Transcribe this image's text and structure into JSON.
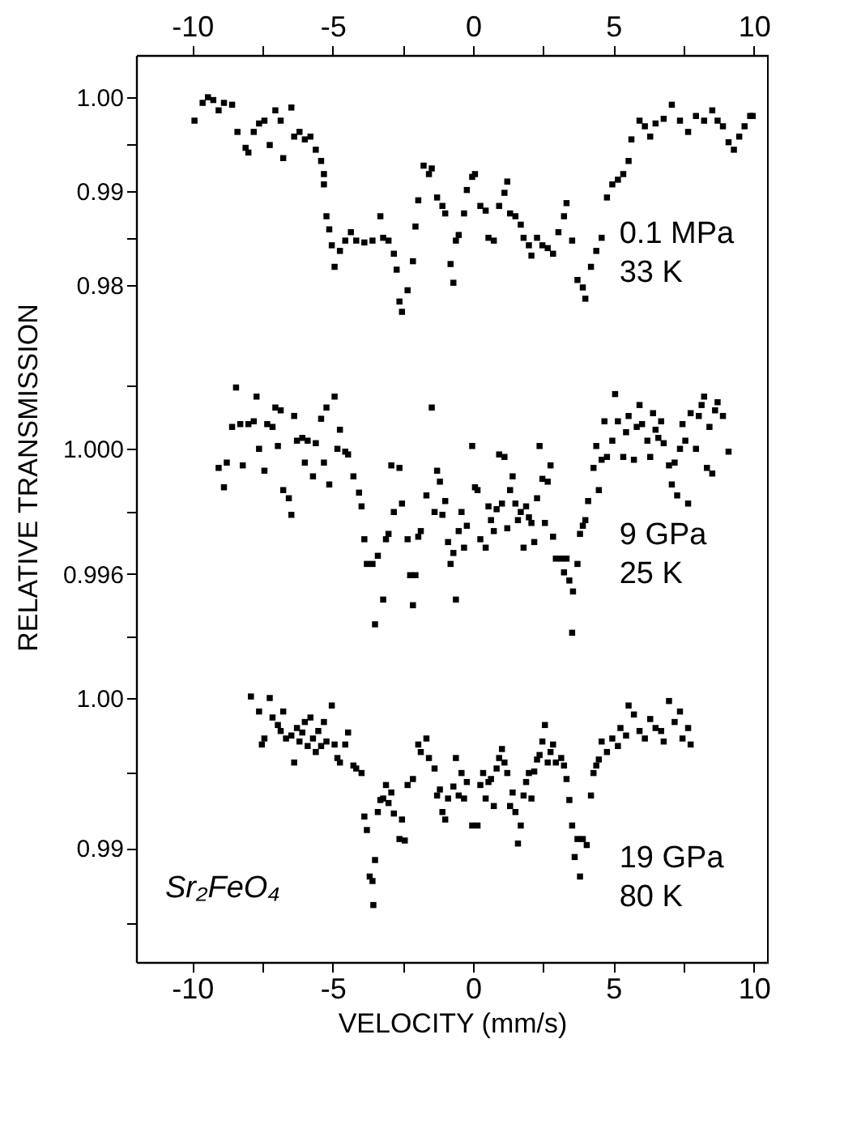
{
  "chart_data": [
    {
      "type": "scatter",
      "marker": "square",
      "color": "#000000",
      "xlim": [
        -12,
        10.5
      ],
      "xticks": [
        -10,
        {
          "value": -7.5,
          "label": null
        },
        -5,
        {
          "value": -2.5,
          "label": null
        },
        0,
        {
          "value": 2.5,
          "label": null
        },
        5,
        {
          "value": 7.5,
          "label": null
        },
        10
      ],
      "ylim": [
        0.9765,
        1.0045
      ],
      "yticks": [
        {
          "value": 1,
          "label": "1.00"
        },
        {
          "value": 0.995,
          "label": null
        },
        0.99,
        {
          "value": 0.985,
          "label": null
        },
        0.98
      ],
      "annotations": [
        "0.1 MPa",
        "33 K"
      ],
      "x": [
        -9.92,
        -9.63,
        -9.44,
        -9.25,
        -9.06,
        -8.87,
        -8.58,
        -8.39,
        -8.1,
        -8.0,
        -7.81,
        -7.62,
        -7.43,
        -7.24,
        -7.04,
        -6.85,
        -6.76,
        -6.47,
        -6.37,
        -6.18,
        -5.99,
        -5.79,
        -5.6,
        -5.41,
        -5.31,
        -5.31,
        -5.22,
        -5.12,
        -5.03,
        -4.93,
        -4.74,
        -4.55,
        -4.35,
        -4.16,
        -3.87,
        -3.58,
        -3.3,
        -3.2,
        -3.01,
        -2.82,
        -2.72,
        -2.62,
        -2.53,
        -2.33,
        -2.14,
        -2.05,
        -1.95,
        -1.76,
        -1.57,
        -1.47,
        -1.28,
        -1.09,
        -0.99,
        -0.8,
        -0.7,
        -0.61,
        -0.51,
        -0.32,
        -0.22,
        -0.03,
        0.07,
        0.26,
        0.45,
        0.55,
        0.74,
        0.93,
        1.12,
        1.22,
        1.32,
        1.51,
        1.7,
        1.8,
        1.99,
        2.08,
        2.28,
        2.47,
        2.66,
        2.85,
        3.04,
        3.24,
        3.33,
        3.53,
        3.72,
        3.91,
        4.0,
        4.2,
        4.39,
        4.58,
        4.77,
        4.96,
        5.16,
        5.35,
        5.54,
        5.64,
        5.93,
        6.12,
        6.31,
        6.5,
        6.79,
        7.08,
        7.37,
        7.66,
        7.94,
        8.23,
        8.52,
        8.71,
        8.9,
        9.1,
        9.29,
        9.48,
        9.67,
        9.87,
        9.96
      ],
      "values": [
        0.9975,
        0.9994,
        1.0,
        0.9997,
        0.9986,
        0.9994,
        0.9992,
        0.9963,
        0.9946,
        0.9941,
        0.9963,
        0.9972,
        0.9975,
        0.9949,
        0.9986,
        0.9975,
        0.9935,
        0.9989,
        0.9958,
        0.9963,
        0.9955,
        0.9958,
        0.9944,
        0.9932,
        0.9918,
        0.9907,
        0.9873,
        0.9859,
        0.9842,
        0.9819,
        0.9836,
        0.9847,
        0.9856,
        0.9847,
        0.9845,
        0.9847,
        0.9873,
        0.985,
        0.9847,
        0.9833,
        0.9816,
        0.9782,
        0.9771,
        0.9794,
        0.9825,
        0.9862,
        0.989,
        0.9927,
        0.9918,
        0.9924,
        0.9893,
        0.9884,
        0.9876,
        0.9822,
        0.9802,
        0.9847,
        0.9853,
        0.9876,
        0.9901,
        0.9915,
        0.9918,
        0.9884,
        0.9879,
        0.985,
        0.9847,
        0.9884,
        0.9898,
        0.991,
        0.9876,
        0.9873,
        0.9864,
        0.985,
        0.9842,
        0.9831,
        0.985,
        0.9842,
        0.9839,
        0.9833,
        0.9856,
        0.9873,
        0.9887,
        0.9847,
        0.9805,
        0.9797,
        0.9785,
        0.9819,
        0.9836,
        0.985,
        0.9893,
        0.9907,
        0.9912,
        0.9918,
        0.9932,
        0.9955,
        0.9975,
        0.9969,
        0.9958,
        0.9972,
        0.9977,
        0.9992,
        0.9975,
        0.9963,
        0.998,
        0.9975,
        0.9986,
        0.9975,
        0.9969,
        0.9952,
        0.9944,
        0.9958,
        0.9969,
        0.998,
        0.998
      ]
    },
    {
      "type": "scatter",
      "marker": "square",
      "color": "#000000",
      "xlim": [
        -12,
        10.5
      ],
      "tick_labels": "y",
      "ylim": [
        0.994,
        1.0042
      ],
      "yticks": [
        {
          "value": 1.002,
          "label": null
        },
        {
          "value": 1,
          "label": "1.000"
        },
        {
          "value": 0.998,
          "label": null
        },
        0.996,
        {
          "value": 0.994,
          "label": null
        }
      ],
      "ylabel": "RELATIVE TRANSMISSION",
      "annotations": [
        "9 GPa",
        "25 K"
      ],
      "x": [
        -9.06,
        -8.87,
        -8.77,
        -8.58,
        -8.44,
        -8.29,
        -8.2,
        -8.0,
        -7.81,
        -7.71,
        -7.62,
        -7.43,
        -7.33,
        -7.14,
        -7.04,
        -6.95,
        -6.85,
        -6.76,
        -6.56,
        -6.47,
        -6.37,
        -6.27,
        -6.08,
        -5.99,
        -5.89,
        -5.7,
        -5.6,
        -5.41,
        -5.31,
        -5.22,
        -5.12,
        -4.93,
        -4.83,
        -4.74,
        -4.55,
        -4.45,
        -4.26,
        -4.06,
        -3.97,
        -3.87,
        -3.78,
        -3.58,
        -3.49,
        -3.39,
        -3.2,
        -3.1,
        -3.01,
        -2.91,
        -2.82,
        -2.62,
        -2.53,
        -2.33,
        -2.24,
        -2.14,
        -2.05,
        -1.95,
        -1.86,
        -1.66,
        -1.47,
        -1.37,
        -1.28,
        -1.18,
        -1.09,
        -0.99,
        -0.89,
        -0.8,
        -0.7,
        -0.61,
        -0.51,
        -0.41,
        -0.32,
        -0.22,
        -0.03,
        0.07,
        0.16,
        0.26,
        0.45,
        0.55,
        0.64,
        0.74,
        0.84,
        0.93,
        1.03,
        1.12,
        1.22,
        1.32,
        1.41,
        1.51,
        1.6,
        1.7,
        1.8,
        1.89,
        1.99,
        2.08,
        2.18,
        2.28,
        2.37,
        2.47,
        2.56,
        2.66,
        2.76,
        2.85,
        2.95,
        3.14,
        3.24,
        3.33,
        3.43,
        3.53,
        3.56,
        3.72,
        3.81,
        3.91,
        4.0,
        4.1,
        4.29,
        4.39,
        4.48,
        4.58,
        4.68,
        4.77,
        4.96,
        5.06,
        5.16,
        5.35,
        5.45,
        5.54,
        5.73,
        5.83,
        5.93,
        6.02,
        6.21,
        6.31,
        6.41,
        6.5,
        6.6,
        6.7,
        6.79,
        6.98,
        7.08,
        7.18,
        7.27,
        7.37,
        7.46,
        7.56,
        7.66,
        7.75,
        7.94,
        8.04,
        8.14,
        8.23,
        8.33,
        8.42,
        8.52,
        8.62,
        8.71,
        8.9,
        9.1
      ],
      "values": [
        0.99939,
        0.99877,
        0.99956,
        1.0007,
        1.00196,
        1.00079,
        0.99947,
        1.00079,
        1.00088,
        1.00167,
        1.0,
        0.9993,
        1.00079,
        1.0007,
        1.00132,
        1.00009,
        1.00123,
        0.99868,
        0.99842,
        0.99789,
        1.00105,
        1.00026,
        1.00035,
        0.99956,
        1.00026,
        0.99912,
        1.00018,
        1.00096,
        0.99956,
        1.00132,
        0.99886,
        1.00167,
        1.0,
        1.00061,
        0.99991,
        0.99982,
        0.99912,
        0.9986,
        0.99816,
        0.99711,
        0.99632,
        0.99632,
        0.99439,
        0.99658,
        0.99518,
        0.99711,
        0.99728,
        0.99947,
        0.99798,
        0.99939,
        0.99825,
        0.99711,
        0.99596,
        0.995,
        0.99596,
        0.99719,
        0.99737,
        0.99851,
        1.00132,
        0.99798,
        0.9993,
        0.99895,
        0.99789,
        0.99833,
        0.99702,
        0.99632,
        0.99667,
        0.99518,
        0.99737,
        0.99798,
        0.99684,
        0.99754,
        1.00009,
        0.99877,
        0.99868,
        0.99711,
        0.99684,
        0.99816,
        0.99772,
        0.99737,
        0.99807,
        0.99982,
        0.99825,
        0.99974,
        0.99746,
        0.99868,
        0.99912,
        0.99825,
        0.99772,
        0.99798,
        0.99684,
        0.99816,
        0.99781,
        0.99763,
        0.99702,
        0.99842,
        1.00009,
        0.99904,
        0.99763,
        0.99895,
        0.99947,
        0.99719,
        0.99649,
        0.99649,
        0.99605,
        0.99649,
        0.99579,
        0.99412,
        0.99544,
        0.99632,
        0.99728,
        0.99754,
        0.99772,
        0.99833,
        0.99939,
        1.00009,
        0.99868,
        0.99965,
        1.00088,
        0.99974,
        1.00026,
        1.00175,
        1.00088,
        0.99974,
        1.00053,
        1.00105,
        0.99965,
        1.0007,
        1.0014,
        1.00079,
        1.00026,
        0.99974,
        1.00114,
        1.00061,
        1.00035,
        1.00088,
        1.00018,
        0.99947,
        0.99886,
        0.99956,
        0.99851,
        1.0,
        1.00079,
        1.00026,
        0.99825,
        1.00114,
        1.0,
        1.00105,
        1.0014,
        1.00167,
        0.99939,
        1.0007,
        0.99921,
        1.00123,
        1.00149,
        1.00105,
        0.99991
      ]
    },
    {
      "type": "scatter",
      "marker": "square",
      "color": "#000000",
      "xlim": [
        -12,
        10.5
      ],
      "xticks": [
        -10,
        {
          "value": -7.5,
          "label": null
        },
        -5,
        {
          "value": -2.5,
          "label": null
        },
        0,
        {
          "value": 2.5,
          "label": null
        },
        5,
        {
          "value": 7.5,
          "label": null
        },
        10
      ],
      "xlabel": "VELOCITY (mm/s)",
      "ylim": [
        0.9824,
        1.0041
      ],
      "yticks": [
        {
          "value": 1,
          "label": "1.00"
        },
        {
          "value": 0.995,
          "label": null
        },
        0.99,
        {
          "value": 0.985,
          "label": null
        }
      ],
      "annotations": [
        "19 GPa",
        "80 K",
        "Sr₂FeO₄"
      ],
      "x": [
        -7.91,
        -7.62,
        -7.52,
        -7.43,
        -7.24,
        -7.14,
        -6.95,
        -6.85,
        -6.76,
        -6.66,
        -6.47,
        -6.37,
        -6.27,
        -6.18,
        -6.08,
        -5.99,
        -5.89,
        -5.79,
        -5.7,
        -5.6,
        -5.51,
        -5.41,
        -5.31,
        -5.22,
        -5.03,
        -4.93,
        -4.83,
        -4.74,
        -4.55,
        -4.45,
        -4.26,
        -4.16,
        -3.97,
        -3.87,
        -3.78,
        -3.68,
        -3.58,
        -3.55,
        -3.49,
        -3.39,
        -3.3,
        -3.2,
        -3.1,
        -3.01,
        -2.91,
        -2.82,
        -2.62,
        -2.53,
        -2.43,
        -2.33,
        -2.14,
        -1.95,
        -1.86,
        -1.66,
        -1.57,
        -1.37,
        -1.28,
        -1.18,
        -1.09,
        -0.99,
        -0.89,
        -0.7,
        -0.61,
        -0.51,
        -0.41,
        -0.32,
        -0.22,
        -0.03,
        0.16,
        0.26,
        0.36,
        0.45,
        0.55,
        0.64,
        0.74,
        0.84,
        0.93,
        1.03,
        1.12,
        1.22,
        1.32,
        1.41,
        1.51,
        1.6,
        1.7,
        1.8,
        1.89,
        1.99,
        2.08,
        2.18,
        2.28,
        2.37,
        2.47,
        2.56,
        2.66,
        2.76,
        2.85,
        2.95,
        3.14,
        3.24,
        3.33,
        3.43,
        3.53,
        3.62,
        3.72,
        3.81,
        3.91,
        4.05,
        4.2,
        4.29,
        4.39,
        4.48,
        4.58,
        4.77,
        4.96,
        5.16,
        5.25,
        5.45,
        5.54,
        5.73,
        5.93,
        6.12,
        6.31,
        6.5,
        6.7,
        6.79,
        6.98,
        7.18,
        7.37,
        7.46,
        7.66,
        7.75
      ],
      "values": [
        1.0001,
        0.9991,
        0.9969,
        0.9973,
        1.0,
        0.9987,
        0.9982,
        0.9978,
        0.9991,
        0.9973,
        0.9975,
        0.9957,
        0.998,
        0.9971,
        0.9977,
        0.9984,
        0.9968,
        0.9987,
        0.9973,
        0.9964,
        0.9978,
        0.9968,
        0.9984,
        0.9971,
        0.9995,
        0.9969,
        0.996,
        0.9957,
        0.9969,
        0.9977,
        0.9955,
        0.9953,
        0.995,
        0.9921,
        0.9912,
        0.9881,
        0.9878,
        0.9862,
        0.9892,
        0.9924,
        0.9932,
        0.9933,
        0.9942,
        0.993,
        0.9937,
        0.9923,
        0.9906,
        0.9919,
        0.9905,
        0.9942,
        0.9946,
        0.9969,
        0.9964,
        0.9973,
        0.996,
        0.9953,
        0.9935,
        0.9939,
        0.9924,
        0.9919,
        0.9933,
        0.9941,
        0.996,
        0.9935,
        0.995,
        0.9933,
        0.9944,
        0.9915,
        0.9915,
        0.9942,
        0.995,
        0.9933,
        0.9944,
        0.9946,
        0.9928,
        0.9953,
        0.996,
        0.9966,
        0.9957,
        0.995,
        0.9928,
        0.9937,
        0.9924,
        0.9903,
        0.9915,
        0.9935,
        0.9944,
        0.995,
        0.9933,
        0.9951,
        0.9959,
        0.9962,
        0.9971,
        0.9982,
        0.9957,
        0.9964,
        0.9969,
        0.9957,
        0.996,
        0.9955,
        0.9946,
        0.9932,
        0.9915,
        0.9894,
        0.9906,
        0.9881,
        0.9906,
        0.9902,
        0.9935,
        0.995,
        0.9955,
        0.9959,
        0.9971,
        0.9964,
        0.9973,
        0.9968,
        0.998,
        0.9975,
        0.9995,
        0.9989,
        0.9978,
        0.9973,
        0.9986,
        0.998,
        0.9978,
        0.9971,
        0.9998,
        0.9984,
        0.9991,
        0.9973,
        0.998,
        0.9969
      ]
    }
  ]
}
